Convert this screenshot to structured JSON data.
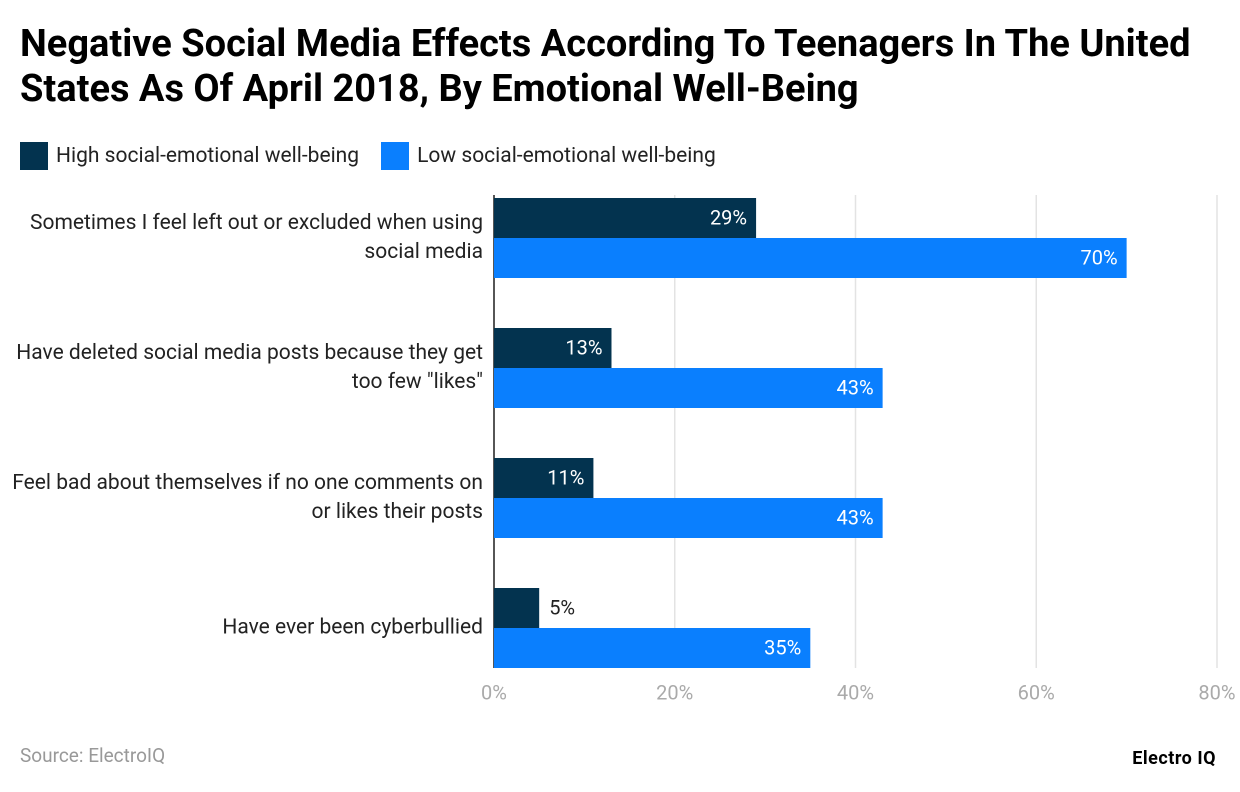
{
  "chart_data": {
    "type": "hbar",
    "title": "Negative Social Media Effects According To Teenagers In The United States As Of April 2018, By Emotional Well-Being",
    "categories": [
      "Sometimes I feel left out or excluded when using social media",
      "Have deleted social media posts because they get too few \"likes\"",
      "Feel bad about themselves if no one comments on or likes their posts",
      "Have ever been cyberbullied"
    ],
    "series": [
      {
        "name": "High social-emotional well-being",
        "color": "#03334f",
        "values": [
          29,
          13,
          11,
          5
        ],
        "value_labels": [
          "29%",
          "13%",
          "11%",
          "5%"
        ]
      },
      {
        "name": "Low social-emotional well-being",
        "color": "#0a7ffe",
        "values": [
          70,
          43,
          43,
          35
        ],
        "value_labels": [
          "70%",
          "43%",
          "43%",
          "35%"
        ]
      }
    ],
    "xlim": [
      0,
      80
    ],
    "xticks": [
      {
        "value": 0,
        "label": "0%"
      },
      {
        "value": 20,
        "label": "20%"
      },
      {
        "value": 40,
        "label": "40%"
      },
      {
        "value": 60,
        "label": "60%"
      },
      {
        "value": 80,
        "label": "80%"
      }
    ],
    "grid": true,
    "legend": "top",
    "source": "Source: ElectroIQ",
    "logo": "Electro IQ"
  }
}
